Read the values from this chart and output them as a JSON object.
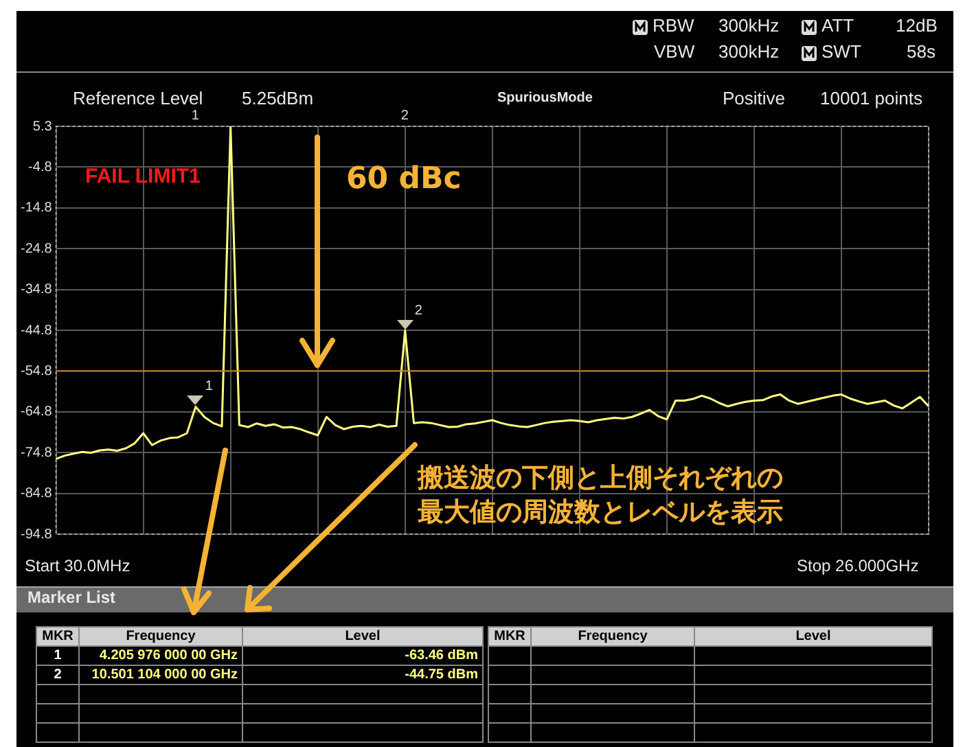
{
  "chart_data": {
    "type": "line",
    "categories": [
      null,
      null,
      null,
      null,
      null,
      null,
      null,
      null,
      null,
      null,
      null,
      null,
      null,
      null,
      null,
      null,
      null,
      null,
      null,
      null,
      null,
      null,
      null,
      null,
      null,
      null,
      null,
      null,
      null,
      null,
      null,
      null,
      null,
      null,
      null,
      null,
      null,
      null,
      null,
      null,
      null,
      null,
      null,
      null,
      null,
      null,
      null,
      null,
      null,
      null,
      null,
      null,
      null,
      null,
      null,
      null,
      null,
      null,
      null,
      null,
      null,
      null,
      null,
      null,
      null,
      null,
      null,
      null,
      null,
      null,
      null,
      null,
      null,
      null,
      null,
      null,
      null,
      null,
      null,
      null,
      null,
      null,
      null,
      null,
      null,
      null,
      null,
      null,
      null,
      null,
      null,
      null,
      null,
      null,
      null,
      null,
      null,
      null,
      null,
      null,
      null
    ],
    "ylim": [
      -94.75,
      5.25
    ],
    "yticks": [
      {
        "value": 5.25,
        "label": "5.3"
      },
      {
        "value": -4.75,
        "label": "-4.8"
      },
      {
        "value": -14.75,
        "label": "-14.8"
      },
      {
        "value": -24.75,
        "label": "-24.8"
      },
      {
        "value": -34.75,
        "label": "-34.8"
      },
      {
        "value": -44.75,
        "label": "-44.8"
      },
      {
        "value": -54.75,
        "label": "-54.8"
      },
      {
        "value": -64.75,
        "label": "-64.8"
      },
      {
        "value": -74.75,
        "label": "-74.8"
      },
      {
        "value": -84.75,
        "label": "-84.8"
      },
      {
        "value": -94.75,
        "label": "-94.8"
      }
    ],
    "tick_labels": "y",
    "grid": true,
    "legend": false,
    "line_style": "solid",
    "marker": "none",
    "series": [
      {
        "color": "#ffff80",
        "values": [
          -76.3,
          -75.5,
          -75.0,
          -74.6,
          -74.8,
          -74.2,
          -74.0,
          -74.3,
          -73.7,
          -72.5,
          -70.0,
          -72.9,
          -71.8,
          -71.2,
          -71.0,
          -70.0,
          -63.5,
          -66.0,
          -67.5,
          -68.3,
          5.25,
          -68.0,
          -68.5,
          -67.6,
          -68.2,
          -67.8,
          -68.6,
          -68.5,
          -69.0,
          -69.8,
          -70.5,
          -66.0,
          -68.0,
          -69.0,
          -68.4,
          -68.2,
          -68.5,
          -67.9,
          -68.4,
          -68.2,
          -44.8,
          -67.5,
          -67.3,
          -67.5,
          -68.0,
          -68.5,
          -68.4,
          -67.8,
          -67.6,
          -67.2,
          -66.8,
          -67.5,
          -68.0,
          -68.3,
          -68.5,
          -68.0,
          -67.5,
          -67.2,
          -67.0,
          -66.8,
          -67.0,
          -67.3,
          -66.8,
          -66.5,
          -66.2,
          -66.4,
          -66.0,
          -65.2,
          -64.3,
          -65.8,
          -66.6,
          -62.0,
          -62.0,
          -61.6,
          -60.8,
          -61.5,
          -62.6,
          -63.4,
          -62.8,
          -62.3,
          -62.0,
          -61.9,
          -61.0,
          -60.5,
          -62.0,
          -62.8,
          -62.3,
          -61.8,
          -61.3,
          -60.8,
          -60.5,
          -61.5,
          -62.2,
          -62.8,
          -62.4,
          -62.0,
          -63.2,
          -63.9,
          -62.5,
          -61.1,
          -63.4
        ]
      }
    ],
    "ref_lines": [
      {
        "axis": "y",
        "value": -54.75,
        "color": "#c08000"
      }
    ],
    "annotations": [
      "Reference Level",
      "5.25dBm",
      "SpuriousMode",
      "Positive",
      "10001 points",
      "RBW",
      "300kHz",
      "VBW",
      "300kHz",
      "ATT",
      "12dB",
      "SWT",
      "58s",
      "Start 30.0MHz",
      "Stop 26.000GHz",
      "FAIL LIMIT1",
      "60 dBc",
      "搬送波の下側と上側それぞれの",
      "最大値の周波数とレベルを表示",
      "Marker List",
      "MKR",
      "Frequency",
      "Level",
      "1",
      "4.205 976 000 00 GHz",
      "-63.46 dBm",
      "2",
      "10.501 104 000 00 GHz",
      "-44.75 dBm",
      "MKR",
      "Frequency",
      "Level",
      "1",
      "2",
      "1",
      "2"
    ]
  }
}
